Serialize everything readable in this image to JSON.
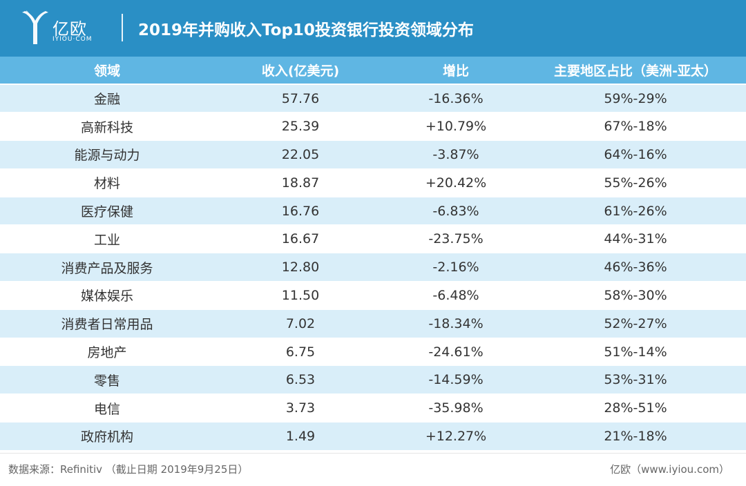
{
  "header": {
    "logo_text": "亿欧",
    "logo_sub": "IYIOU·COM",
    "title": "2019年并购收入Top10投资银行投资领域分布"
  },
  "chart_data": {
    "type": "table",
    "title": "2019年并购收入Top10投资银行投资领域分布",
    "columns": [
      "领域",
      "收入(亿美元)",
      "增比",
      "主要地区占比（美洲-亚太）"
    ],
    "rows": [
      [
        "金融",
        "57.76",
        "-16.36%",
        "59%-29%"
      ],
      [
        "高新科技",
        "25.39",
        "+10.79%",
        "67%-18%"
      ],
      [
        "能源与动力",
        "22.05",
        "-3.87%",
        "64%-16%"
      ],
      [
        "材料",
        "18.87",
        "+20.42%",
        "55%-26%"
      ],
      [
        "医疗保健",
        "16.76",
        "-6.83%",
        "61%-26%"
      ],
      [
        "工业",
        "16.67",
        "-23.75%",
        "44%-31%"
      ],
      [
        "消费产品及服务",
        "12.80",
        "-2.16%",
        "46%-36%"
      ],
      [
        "媒体娱乐",
        "11.50",
        "-6.48%",
        "58%-30%"
      ],
      [
        "消费者日常用品",
        "7.02",
        "-18.34%",
        "52%-27%"
      ],
      [
        "房地产",
        "6.75",
        "-24.61%",
        "51%-14%"
      ],
      [
        "零售",
        "6.53",
        "-14.59%",
        "53%-31%"
      ],
      [
        "电信",
        "3.73",
        "-35.98%",
        "28%-51%"
      ],
      [
        "政府机构",
        "1.49",
        "+12.27%",
        "21%-18%"
      ]
    ]
  },
  "footer": {
    "source": "数据来源：Refinitiv （截止日期 2019年9月25日）",
    "credit": "亿欧（www.iyiou.com）"
  },
  "colors": {
    "header_bg": "#2a8fc5",
    "table_header_bg": "#5fb6e3",
    "row_alt_bg": "#d9eef9"
  }
}
